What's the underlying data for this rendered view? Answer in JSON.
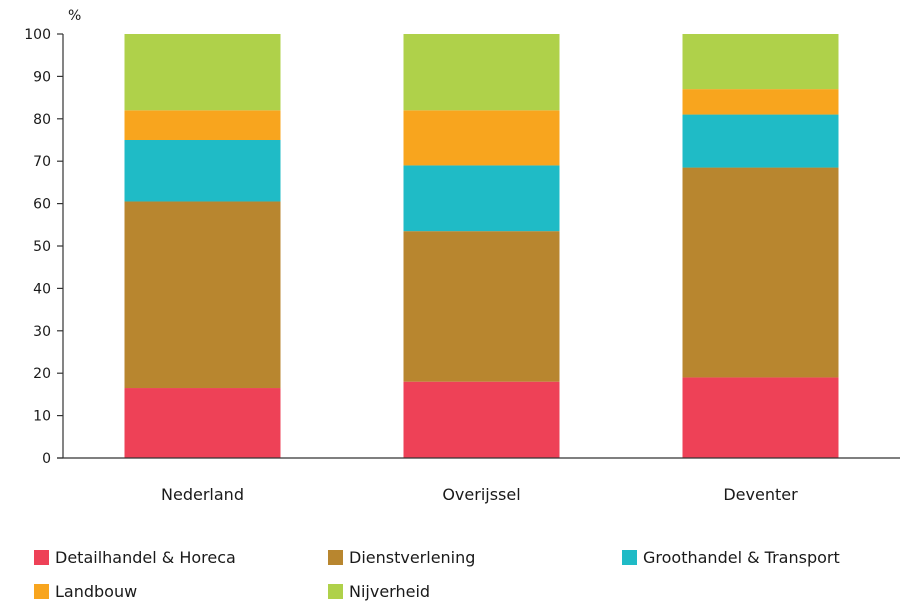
{
  "chart_data": {
    "type": "bar",
    "stacked": true,
    "unit_label": "%",
    "ylim": [
      0,
      100
    ],
    "yticks": [
      0,
      10,
      20,
      30,
      40,
      50,
      60,
      70,
      80,
      90,
      100
    ],
    "grid": false,
    "legend_position": "bottom",
    "categories": [
      "Nederland",
      "Overijssel",
      "Deventer"
    ],
    "series": [
      {
        "name": "Detailhandel & Horeca",
        "color": "#ee4157",
        "values": [
          16.5,
          18,
          19
        ]
      },
      {
        "name": "Dienstverlening",
        "color": "#b8862f",
        "values": [
          44,
          35.5,
          49.5
        ]
      },
      {
        "name": "Groothandel & Transport",
        "color": "#1fbbc6",
        "values": [
          14.5,
          15.5,
          12.5
        ]
      },
      {
        "name": "Landbouw",
        "color": "#f8a51e",
        "values": [
          7,
          13,
          6
        ]
      },
      {
        "name": "Nijverheid",
        "color": "#afd14a",
        "values": [
          18,
          18,
          13
        ]
      }
    ]
  }
}
